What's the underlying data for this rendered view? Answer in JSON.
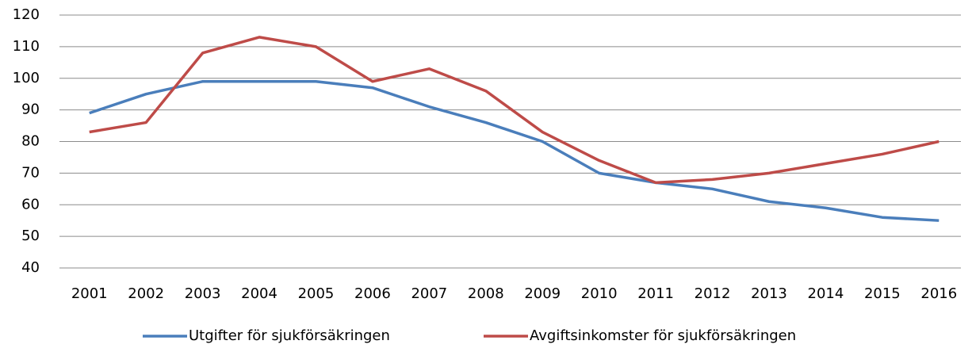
{
  "chart_data": {
    "type": "line",
    "categories": [
      "2001",
      "2002",
      "2003",
      "2004",
      "2005",
      "2006",
      "2007",
      "2008",
      "2009",
      "2010",
      "2011",
      "2012",
      "2013",
      "2014",
      "2015",
      "2016"
    ],
    "series": [
      {
        "name": "Utgifter för sjukförsäkringen",
        "color": "#4a7ebb",
        "values": [
          89,
          95,
          99,
          99,
          99,
          97,
          91,
          86,
          80,
          70,
          67,
          65,
          61,
          59,
          56,
          55
        ]
      },
      {
        "name": "Avgiftsinkomster för sjukförsäkringen",
        "color": "#be4b48",
        "values": [
          83,
          86,
          108,
          113,
          110,
          99,
          103,
          96,
          83,
          74,
          67,
          68,
          70,
          73,
          76,
          80
        ]
      }
    ],
    "ylim": [
      40,
      120
    ],
    "yticks": [
      40,
      50,
      60,
      70,
      80,
      90,
      100,
      110,
      120
    ],
    "grid": true,
    "legend": "bottom"
  }
}
